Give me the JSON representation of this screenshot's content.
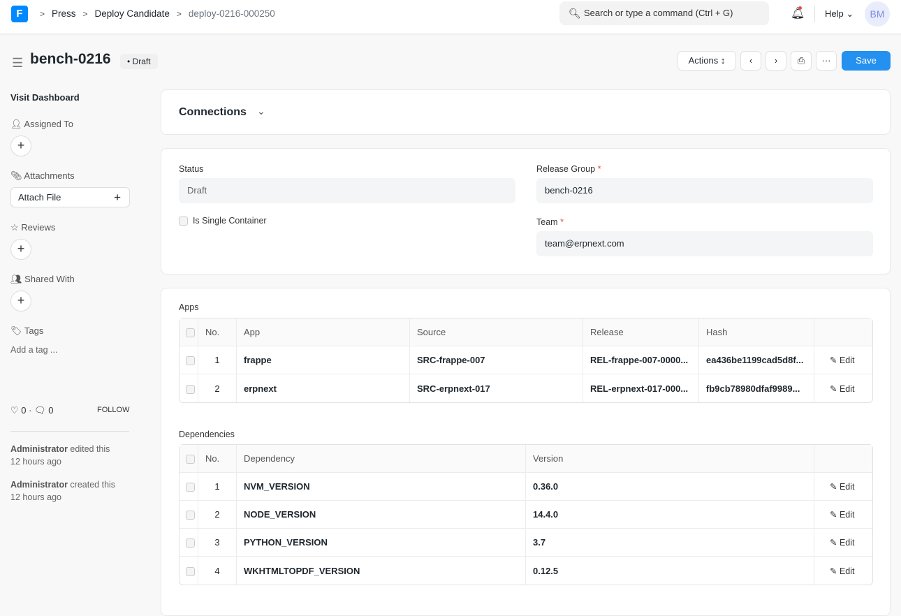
{
  "topbar": {
    "logo": "F",
    "breadcrumbs": [
      "Press",
      "Deploy Candidate",
      "deploy-0216-000250"
    ],
    "search_placeholder": "Search or type a command (Ctrl + G)",
    "help": "Help",
    "avatar": "BM"
  },
  "header": {
    "title": "bench-0216",
    "status": "Draft",
    "actions": "Actions",
    "save": "Save"
  },
  "sidebar": {
    "dashboard": "Visit Dashboard",
    "assigned_to": "Assigned To",
    "attachments": "Attachments",
    "attach_file": "Attach File",
    "reviews": "Reviews",
    "shared_with": "Shared With",
    "tags": "Tags",
    "add_tag": "Add a tag ...",
    "likes": "0",
    "comments": "0",
    "follow": "FOLLOW",
    "activity": [
      {
        "user": "Administrator",
        "action": " edited this",
        "time": "12 hours ago"
      },
      {
        "user": "Administrator",
        "action": " created this",
        "time": "12 hours ago"
      }
    ]
  },
  "connections": {
    "title": "Connections"
  },
  "form": {
    "status_label": "Status",
    "status_value": "Draft",
    "single_container_label": "Is Single Container",
    "release_group_label": "Release Group",
    "release_group_value": "bench-0216",
    "team_label": "Team",
    "team_value": "team@erpnext.com"
  },
  "apps": {
    "label": "Apps",
    "columns": [
      "No.",
      "App",
      "Source",
      "Release",
      "Hash"
    ],
    "rows": [
      {
        "no": "1",
        "app": "frappe",
        "source": "SRC-frappe-007",
        "release": "REL-frappe-007-0000...",
        "hash": "ea436be1199cad5d8f...",
        "edit": "Edit"
      },
      {
        "no": "2",
        "app": "erpnext",
        "source": "SRC-erpnext-017",
        "release": "REL-erpnext-017-000...",
        "hash": "fb9cb78980dfaf9989...",
        "edit": "Edit"
      }
    ]
  },
  "dependencies": {
    "label": "Dependencies",
    "columns": [
      "No.",
      "Dependency",
      "Version"
    ],
    "rows": [
      {
        "no": "1",
        "dependency": "NVM_VERSION",
        "version": "0.36.0",
        "edit": "Edit"
      },
      {
        "no": "2",
        "dependency": "NODE_VERSION",
        "version": "14.4.0",
        "edit": "Edit"
      },
      {
        "no": "3",
        "dependency": "PYTHON_VERSION",
        "version": "3.7",
        "edit": "Edit"
      },
      {
        "no": "4",
        "dependency": "WKHTMLTOPDF_VERSION",
        "version": "0.12.5",
        "edit": "Edit"
      }
    ]
  }
}
